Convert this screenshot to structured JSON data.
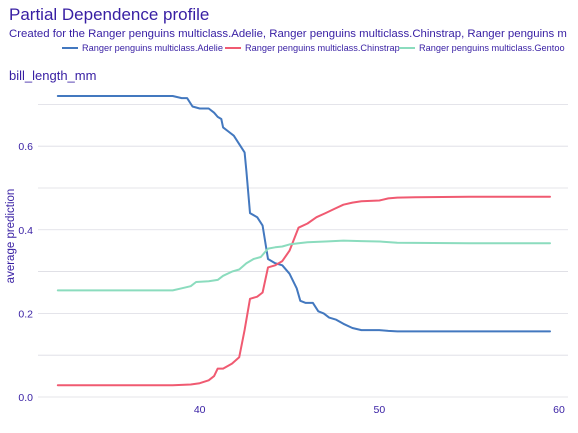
{
  "chart_data": {
    "type": "line",
    "title": "Partial Dependence profile",
    "subtitle": "Created for the Ranger penguins multiclass.Adelie, Ranger penguins multiclass.Chinstrap, Ranger penguins m",
    "panel_label": "bill_length_mm",
    "ylabel": "average prediction",
    "xlabel": "",
    "xlim": [
      31,
      60.5
    ],
    "ylim": [
      0,
      0.72
    ],
    "x_ticks": [
      40,
      50,
      60
    ],
    "y_ticks": [
      0.0,
      0.2,
      0.4,
      0.6
    ],
    "y_tick_labels": [
      "0.0",
      "0.2",
      "0.4",
      "0.6"
    ],
    "legend_position": "top",
    "grid": true,
    "series": [
      {
        "name": "Ranger penguins multiclass.Adelie",
        "color": "#4378bf",
        "points": [
          [
            32.1,
            0.72
          ],
          [
            35,
            0.72
          ],
          [
            38.5,
            0.72
          ],
          [
            39,
            0.715
          ],
          [
            39.3,
            0.715
          ],
          [
            39.6,
            0.695
          ],
          [
            40,
            0.69
          ],
          [
            40.5,
            0.69
          ],
          [
            40.8,
            0.68
          ],
          [
            41,
            0.67
          ],
          [
            41.2,
            0.665
          ],
          [
            41.3,
            0.645
          ],
          [
            41.6,
            0.635
          ],
          [
            41.9,
            0.625
          ],
          [
            42.2,
            0.605
          ],
          [
            42.5,
            0.585
          ],
          [
            42.6,
            0.54
          ],
          [
            42.8,
            0.44
          ],
          [
            43.2,
            0.43
          ],
          [
            43.5,
            0.41
          ],
          [
            43.8,
            0.33
          ],
          [
            44.2,
            0.32
          ],
          [
            44.6,
            0.315
          ],
          [
            45,
            0.295
          ],
          [
            45.4,
            0.26
          ],
          [
            45.6,
            0.23
          ],
          [
            45.9,
            0.225
          ],
          [
            46.3,
            0.225
          ],
          [
            46.6,
            0.205
          ],
          [
            46.9,
            0.2
          ],
          [
            47.2,
            0.19
          ],
          [
            47.6,
            0.185
          ],
          [
            48,
            0.175
          ],
          [
            48.5,
            0.165
          ],
          [
            49,
            0.16
          ],
          [
            49.5,
            0.16
          ],
          [
            50,
            0.16
          ],
          [
            50.5,
            0.158
          ],
          [
            51,
            0.157
          ],
          [
            55,
            0.157
          ],
          [
            59.5,
            0.157
          ]
        ]
      },
      {
        "name": "Ranger penguins multiclass.Chinstrap",
        "color": "#f05a71",
        "points": [
          [
            32.1,
            0.028
          ],
          [
            35,
            0.028
          ],
          [
            38.5,
            0.028
          ],
          [
            39.5,
            0.03
          ],
          [
            40,
            0.033
          ],
          [
            40.5,
            0.04
          ],
          [
            40.8,
            0.05
          ],
          [
            41,
            0.068
          ],
          [
            41.3,
            0.068
          ],
          [
            41.8,
            0.08
          ],
          [
            42.2,
            0.095
          ],
          [
            42.5,
            0.16
          ],
          [
            42.8,
            0.235
          ],
          [
            43.2,
            0.24
          ],
          [
            43.5,
            0.25
          ],
          [
            43.8,
            0.31
          ],
          [
            44.2,
            0.315
          ],
          [
            44.6,
            0.325
          ],
          [
            45,
            0.35
          ],
          [
            45.5,
            0.405
          ],
          [
            46,
            0.415
          ],
          [
            46.5,
            0.43
          ],
          [
            47,
            0.44
          ],
          [
            47.5,
            0.45
          ],
          [
            48,
            0.46
          ],
          [
            48.5,
            0.465
          ],
          [
            49,
            0.468
          ],
          [
            50,
            0.47
          ],
          [
            50.5,
            0.475
          ],
          [
            51,
            0.477
          ],
          [
            52,
            0.478
          ],
          [
            55,
            0.479
          ],
          [
            59.5,
            0.479
          ]
        ]
      },
      {
        "name": "Ranger penguins multiclass.Gentoo",
        "color": "#8bdcbe",
        "points": [
          [
            32.1,
            0.255
          ],
          [
            35,
            0.255
          ],
          [
            38.5,
            0.255
          ],
          [
            39,
            0.26
          ],
          [
            39.5,
            0.265
          ],
          [
            39.8,
            0.275
          ],
          [
            40.5,
            0.277
          ],
          [
            41,
            0.28
          ],
          [
            41.3,
            0.29
          ],
          [
            41.8,
            0.3
          ],
          [
            42.2,
            0.305
          ],
          [
            42.6,
            0.32
          ],
          [
            43,
            0.33
          ],
          [
            43.4,
            0.335
          ],
          [
            43.8,
            0.355
          ],
          [
            44.2,
            0.358
          ],
          [
            44.6,
            0.36
          ],
          [
            45,
            0.365
          ],
          [
            45.5,
            0.368
          ],
          [
            46,
            0.37
          ],
          [
            47,
            0.372
          ],
          [
            48,
            0.374
          ],
          [
            49,
            0.373
          ],
          [
            50,
            0.372
          ],
          [
            51,
            0.369
          ],
          [
            55,
            0.368
          ],
          [
            59.5,
            0.368
          ]
        ]
      }
    ]
  }
}
